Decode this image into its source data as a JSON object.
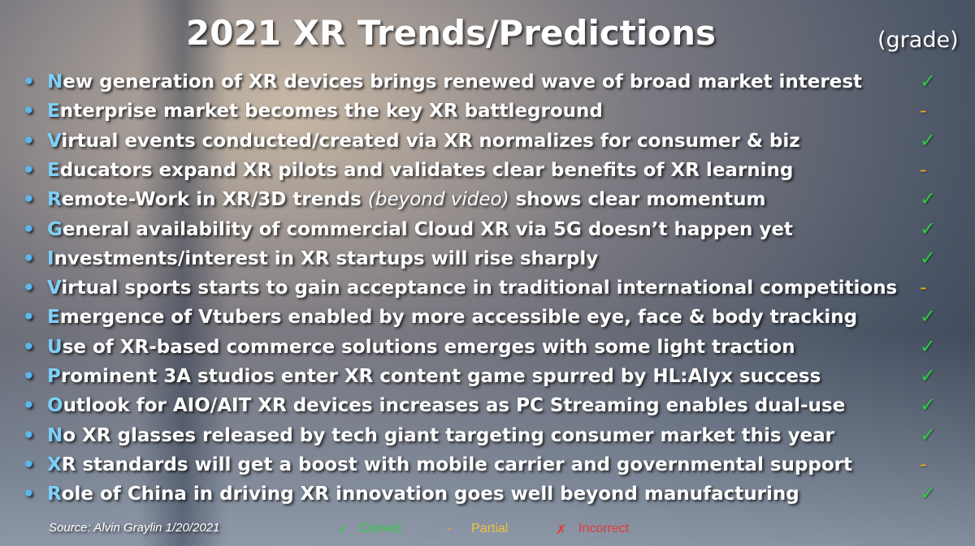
{
  "slide": {
    "title": "2021 XR Trends/Predictions",
    "grade_header": "(grade)",
    "items": [
      {
        "initial": "N",
        "text": "ew generation of XR devices brings renewed wave of broad market interest",
        "grade": "✓"
      },
      {
        "initial": "E",
        "text": "nterprise market becomes the key XR battleground",
        "grade": "-"
      },
      {
        "initial": "V",
        "text": "irtual events conducted/created via XR normalizes for consumer & biz",
        "grade": "✓"
      },
      {
        "initial": "E",
        "text": "ducators expand XR pilots and validates clear benefits of XR learning",
        "grade": "-"
      },
      {
        "initial": "R",
        "text": "emote-Work in XR/3D trends ",
        "italic": "(beyond video)",
        "text_after": " shows clear momentum",
        "grade": "✓"
      },
      {
        "initial": "G",
        "text": "eneral availability of commercial Cloud XR via 5G doesn’t happen yet",
        "grade": "✓"
      },
      {
        "initial": "I",
        "text": "nvestments/interest in XR startups will rise sharply",
        "grade": "✓"
      },
      {
        "initial": "V",
        "text": "irtual sports starts to gain acceptance in traditional international competitions",
        "grade": "-"
      },
      {
        "initial": "E",
        "text": "mergence of Vtubers enabled by more accessible eye, face & body tracking",
        "grade": "✓"
      },
      {
        "initial": "U",
        "text": "se of XR-based commerce solutions emerges with some light traction",
        "grade": "✓"
      },
      {
        "initial": "P",
        "text": "rominent 3A studios enter XR content game spurred by HL:Alyx success",
        "grade": "✓"
      },
      {
        "initial": "O",
        "text": "utlook for AIO/AIT XR devices increases as PC Streaming enables dual-use",
        "grade": "✓"
      },
      {
        "initial": "N",
        "text": "o XR glasses released by tech giant targeting consumer market this year",
        "grade": "✓"
      },
      {
        "initial": "X",
        "text": "R standards will get a boost with mobile carrier and governmental support",
        "grade": "-"
      },
      {
        "initial": "R",
        "text": "ole of China in driving XR innovation goes well beyond manufacturing",
        "grade": "✓"
      }
    ],
    "source": "Source: Alvin Graylin 1/20/2021",
    "legend": [
      {
        "symbol": "✓",
        "label": "Correct"
      },
      {
        "symbol": "-",
        "label": "Partial"
      },
      {
        "symbol": "✗",
        "label": "Incorrect"
      }
    ]
  }
}
